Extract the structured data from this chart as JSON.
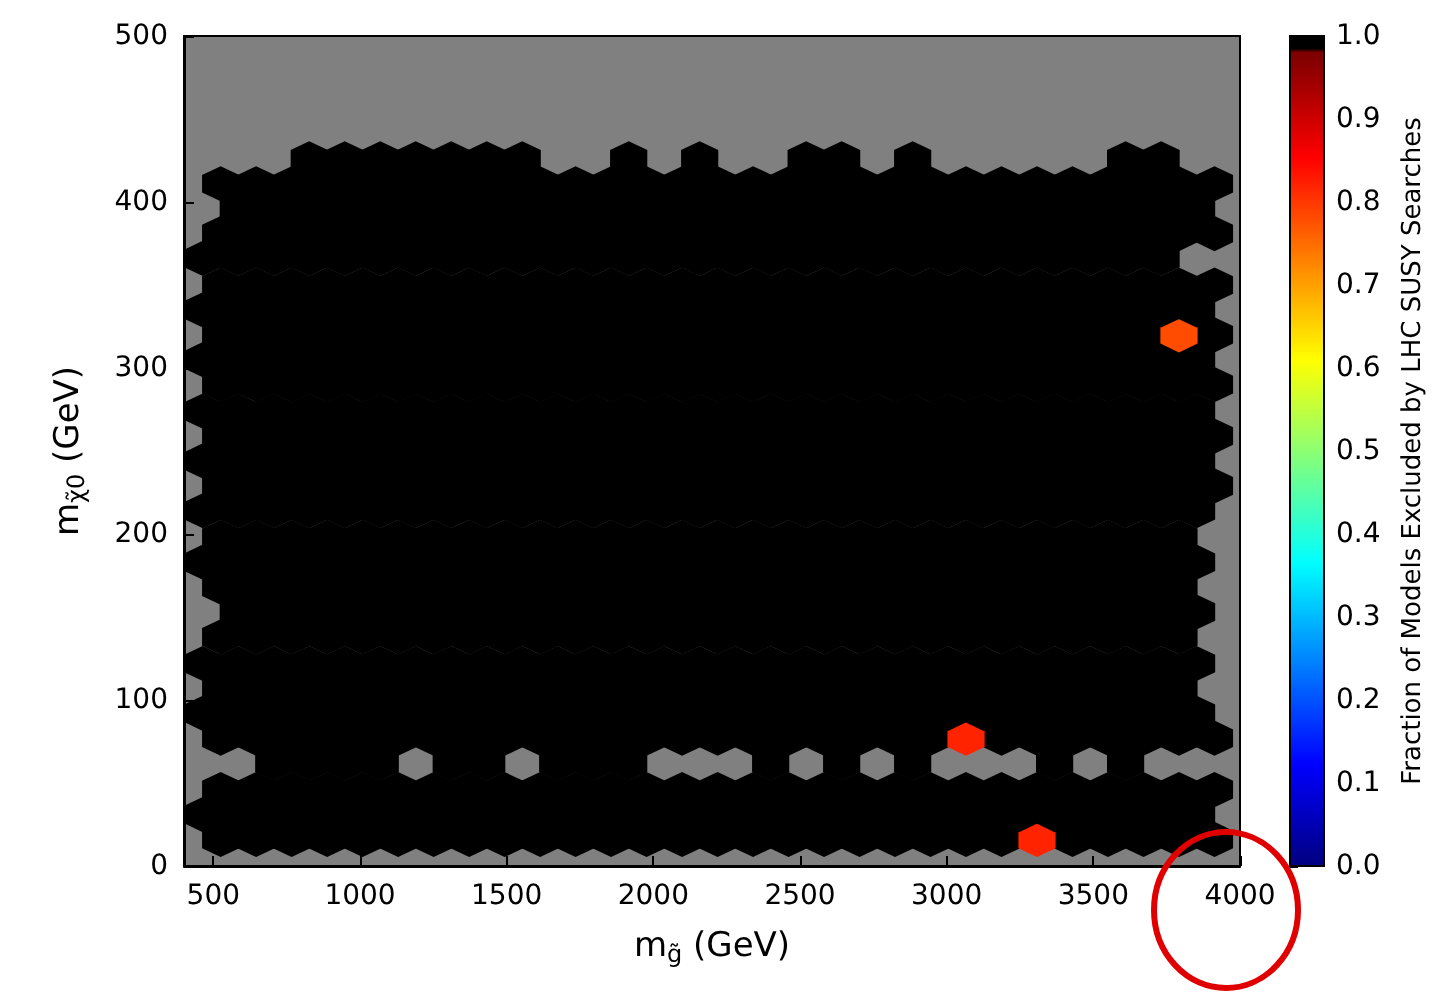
{
  "chart_data": {
    "type": "scatter",
    "xlabel": "m$_{g̃}$ (GeV)",
    "ylabel": "m$_{χ̃0}$ (GeV)",
    "clabel": "Fraction of Models Excluded by LHC SUSY Searches",
    "xlim": [
      400,
      4000
    ],
    "xticks": [
      500,
      1000,
      1500,
      2000,
      2500,
      3000,
      3500,
      4000
    ],
    "ylim": [
      0,
      500
    ],
    "yticks": [
      0,
      100,
      200,
      300,
      400,
      500
    ],
    "clim": [
      0,
      1
    ],
    "cticks": [
      {
        "value": 0,
        "label": "0.0"
      },
      0.1,
      0.2,
      0.3,
      0.4,
      0.5,
      0.6,
      0.7,
      0.8,
      0.9,
      {
        "value": 1,
        "label": "1.0"
      }
    ],
    "grid": false,
    "series": [
      {
        "x": [
          525,
          646,
          767,
          888,
          1009,
          1130,
          1251,
          1372,
          1493,
          1614,
          1735,
          1856,
          1977,
          2098,
          2219,
          2340,
          2461,
          2582,
          2703,
          2824,
          2945,
          3066,
          3187,
          3429,
          3550,
          3671,
          3792,
          3913
        ],
        "values": [
          16,
          16,
          16,
          16,
          16,
          16,
          16,
          16,
          16,
          16,
          16,
          16,
          16,
          16,
          16,
          16,
          16,
          16,
          16,
          16,
          16,
          16,
          16,
          16,
          16,
          16,
          16,
          16
        ],
        "cvalues": [
          1,
          1,
          1,
          1,
          1,
          1,
          1,
          1,
          1,
          1,
          1,
          1,
          1,
          1,
          1,
          1,
          1,
          1,
          1,
          1,
          1,
          1,
          1,
          1,
          1,
          1,
          1,
          1
        ]
      },
      {
        "x": [
          3308
        ],
        "values": [
          16
        ],
        "cvalues": [
          0.82
        ]
      },
      {
        "x": [
          464,
          585,
          706,
          827,
          948,
          1069,
          1190,
          1311,
          1432,
          1553,
          1674,
          1795,
          1916,
          2037,
          2158,
          2279,
          2400,
          2521,
          2642,
          2763,
          2884,
          3005,
          3126,
          3247,
          3368,
          3489,
          3610,
          3731,
          3852
        ],
        "values": [
          31,
          31,
          31,
          31,
          31,
          31,
          31,
          31,
          31,
          31,
          31,
          31,
          31,
          31,
          31,
          31,
          31,
          31,
          31,
          31,
          31,
          31,
          31,
          31,
          31,
          31,
          31,
          31,
          31
        ],
        "cvalues": [
          1,
          1,
          1,
          1,
          1,
          1,
          1,
          1,
          1,
          1,
          1,
          1,
          1,
          1,
          1,
          1,
          1,
          1,
          1,
          1,
          1,
          1,
          1,
          1,
          1,
          1,
          1,
          1,
          1
        ]
      },
      {
        "x": [
          525,
          646,
          767,
          888,
          1009,
          1130,
          1251,
          1372,
          1493,
          1614,
          1735,
          1856,
          1977,
          2098,
          2219,
          2340,
          2461,
          2582,
          2703,
          2824,
          2945,
          3066,
          3187,
          3308,
          3429,
          3550,
          3671,
          3792,
          3913
        ],
        "values": [
          46,
          46,
          46,
          46,
          46,
          46,
          46,
          46,
          46,
          46,
          46,
          46,
          46,
          46,
          46,
          46,
          46,
          46,
          46,
          46,
          46,
          46,
          46,
          46,
          46,
          46,
          46,
          46,
          46
        ],
        "cvalues": [
          1,
          1,
          1,
          1,
          1,
          1,
          1,
          1,
          1,
          1,
          1,
          1,
          1,
          1,
          1,
          1,
          1,
          1,
          1,
          1,
          1,
          1,
          1,
          1,
          1,
          1,
          1,
          1,
          1
        ]
      },
      {
        "x": [
          706,
          827,
          948,
          1069,
          1311,
          1432,
          1674,
          1795,
          1916,
          2400,
          2642,
          2884,
          3368,
          3610
        ],
        "values": [
          62,
          62,
          62,
          62,
          62,
          62,
          62,
          62,
          62,
          62,
          62,
          62,
          62,
          62
        ],
        "cvalues": [
          1,
          1,
          1,
          1,
          1,
          1,
          1,
          1,
          1,
          1,
          1,
          1,
          1,
          1
        ]
      },
      {
        "x": [
          525,
          646,
          767,
          888,
          1009,
          1130,
          1251,
          1372,
          1493,
          1614,
          1735,
          1856,
          1977,
          2098,
          2219,
          2340,
          2461,
          2582,
          2703,
          2824,
          2945,
          3187,
          3308,
          3429,
          3550,
          3671,
          3792,
          3913
        ],
        "values": [
          77,
          77,
          77,
          77,
          77,
          77,
          77,
          77,
          77,
          77,
          77,
          77,
          77,
          77,
          77,
          77,
          77,
          77,
          77,
          77,
          77,
          77,
          77,
          77,
          77,
          77,
          77,
          77
        ],
        "cvalues": [
          1,
          1,
          1,
          1,
          1,
          1,
          1,
          1,
          1,
          1,
          1,
          1,
          1,
          1,
          1,
          1,
          1,
          1,
          1,
          1,
          1,
          1,
          1,
          1,
          1,
          1,
          1,
          1
        ]
      },
      {
        "x": [
          3066
        ],
        "values": [
          77
        ],
        "cvalues": [
          0.82
        ]
      },
      {
        "x": [
          464,
          585,
          706,
          827,
          948,
          1069,
          1190,
          1311,
          1432,
          1553,
          1674,
          1795,
          1916,
          2037,
          2158,
          2279,
          2400,
          2521,
          2642,
          2763,
          2884,
          3005,
          3126,
          3247,
          3368,
          3489,
          3610,
          3731,
          3852
        ],
        "values": [
          92,
          92,
          92,
          92,
          92,
          92,
          92,
          92,
          92,
          92,
          92,
          92,
          92,
          92,
          92,
          92,
          92,
          92,
          92,
          92,
          92,
          92,
          92,
          92,
          92,
          92,
          92,
          92,
          92
        ],
        "cvalues": [
          1,
          1,
          1,
          1,
          1,
          1,
          1,
          1,
          1,
          1,
          1,
          1,
          1,
          1,
          1,
          1,
          1,
          1,
          1,
          1,
          1,
          1,
          1,
          1,
          1,
          1,
          1,
          1,
          1
        ]
      },
      {
        "x": [
          525,
          646,
          767,
          888,
          1009,
          1130,
          1251,
          1372,
          1493,
          1614,
          1735,
          1856,
          1977,
          2098,
          2219,
          2340,
          2461,
          2582,
          2703,
          2824,
          2945,
          3066,
          3187,
          3308,
          3429,
          3550,
          3671,
          3792
        ],
        "values": [
          107,
          107,
          107,
          107,
          107,
          107,
          107,
          107,
          107,
          107,
          107,
          107,
          107,
          107,
          107,
          107,
          107,
          107,
          107,
          107,
          107,
          107,
          107,
          107,
          107,
          107,
          107,
          107
        ],
        "cvalues": [
          1,
          1,
          1,
          1,
          1,
          1,
          1,
          1,
          1,
          1,
          1,
          1,
          1,
          1,
          1,
          1,
          1,
          1,
          1,
          1,
          1,
          1,
          1,
          1,
          1,
          1,
          1,
          1
        ]
      },
      {
        "x": [
          464,
          585,
          706,
          827,
          948,
          1069,
          1190,
          1311,
          1432,
          1553,
          1674,
          1795,
          1916,
          2037,
          2158,
          2279,
          2400,
          2521,
          2642,
          2763,
          2884,
          3005,
          3126,
          3247,
          3368,
          3489,
          3610,
          3731,
          3852
        ],
        "values": [
          122,
          122,
          122,
          122,
          122,
          122,
          122,
          122,
          122,
          122,
          122,
          122,
          122,
          122,
          122,
          122,
          122,
          122,
          122,
          122,
          122,
          122,
          122,
          122,
          122,
          122,
          122,
          122,
          122
        ],
        "cvalues": [
          1,
          1,
          1,
          1,
          1,
          1,
          1,
          1,
          1,
          1,
          1,
          1,
          1,
          1,
          1,
          1,
          1,
          1,
          1,
          1,
          1,
          1,
          1,
          1,
          1,
          1,
          1,
          1,
          1
        ]
      },
      {
        "x": [
          525,
          646,
          767,
          888,
          1009,
          1130,
          1251,
          1372,
          1493,
          1614,
          1735,
          1856,
          1977,
          2098,
          2219,
          2340,
          2461,
          2582,
          2703,
          2824,
          2945,
          3066,
          3187,
          3308,
          3429,
          3550,
          3671,
          3792
        ],
        "values": [
          138,
          138,
          138,
          138,
          138,
          138,
          138,
          138,
          138,
          138,
          138,
          138,
          138,
          138,
          138,
          138,
          138,
          138,
          138,
          138,
          138,
          138,
          138,
          138,
          138,
          138,
          138,
          138
        ],
        "cvalues": [
          1,
          1,
          1,
          1,
          1,
          1,
          1,
          1,
          1,
          1,
          1,
          1,
          1,
          1,
          1,
          1,
          1,
          1,
          1,
          1,
          1,
          1,
          1,
          1,
          1,
          1,
          1,
          1
        ]
      },
      {
        "x": [
          585,
          706,
          827,
          948,
          1069,
          1190,
          1311,
          1432,
          1553,
          1674,
          1795,
          1916,
          2037,
          2158,
          2279,
          2400,
          2521,
          2642,
          2763,
          2884,
          3005,
          3126,
          3247,
          3368,
          3489,
          3610,
          3731,
          3852
        ],
        "values": [
          153,
          153,
          153,
          153,
          153,
          153,
          153,
          153,
          153,
          153,
          153,
          153,
          153,
          153,
          153,
          153,
          153,
          153,
          153,
          153,
          153,
          153,
          153,
          153,
          153,
          153,
          153,
          153
        ],
        "cvalues": [
          1,
          1,
          1,
          1,
          1,
          1,
          1,
          1,
          1,
          1,
          1,
          1,
          1,
          1,
          1,
          1,
          1,
          1,
          1,
          1,
          1,
          1,
          1,
          1,
          1,
          1,
          1,
          1
        ]
      },
      {
        "x": [
          525,
          646,
          767,
          888,
          1009,
          1130,
          1251,
          1372,
          1493,
          1614,
          1735,
          1856,
          1977,
          2098,
          2219,
          2340,
          2461,
          2582,
          2703,
          2824,
          2945,
          3066,
          3187,
          3308,
          3429,
          3550,
          3671,
          3792
        ],
        "values": [
          168,
          168,
          168,
          168,
          168,
          168,
          168,
          168,
          168,
          168,
          168,
          168,
          168,
          168,
          168,
          168,
          168,
          168,
          168,
          168,
          168,
          168,
          168,
          168,
          168,
          168,
          168,
          168
        ],
        "cvalues": [
          1,
          1,
          1,
          1,
          1,
          1,
          1,
          1,
          1,
          1,
          1,
          1,
          1,
          1,
          1,
          1,
          1,
          1,
          1,
          1,
          1,
          1,
          1,
          1,
          1,
          1,
          1,
          1
        ]
      },
      {
        "x": [
          464,
          585,
          706,
          827,
          948,
          1069,
          1190,
          1311,
          1432,
          1553,
          1674,
          1795,
          1916,
          2037,
          2158,
          2279,
          2400,
          2521,
          2642,
          2763,
          2884,
          3005,
          3126,
          3247,
          3368,
          3489,
          3610,
          3731,
          3852
        ],
        "values": [
          183,
          183,
          183,
          183,
          183,
          183,
          183,
          183,
          183,
          183,
          183,
          183,
          183,
          183,
          183,
          183,
          183,
          183,
          183,
          183,
          183,
          183,
          183,
          183,
          183,
          183,
          183,
          183,
          183
        ],
        "cvalues": [
          1,
          1,
          1,
          1,
          1,
          1,
          1,
          1,
          1,
          1,
          1,
          1,
          1,
          1,
          1,
          1,
          1,
          1,
          1,
          1,
          1,
          1,
          1,
          1,
          1,
          1,
          1,
          1,
          1
        ]
      },
      {
        "x": [
          525,
          646,
          767,
          888,
          1009,
          1130,
          1251,
          1372,
          1493,
          1614,
          1735,
          1856,
          1977,
          2098,
          2219,
          2340,
          2461,
          2582,
          2703,
          2824,
          2945,
          3066,
          3187,
          3308,
          3429,
          3550,
          3671,
          3792
        ],
        "values": [
          198,
          198,
          198,
          198,
          198,
          198,
          198,
          198,
          198,
          198,
          198,
          198,
          198,
          198,
          198,
          198,
          198,
          198,
          198,
          198,
          198,
          198,
          198,
          198,
          198,
          198,
          198,
          198
        ],
        "cvalues": [
          1,
          1,
          1,
          1,
          1,
          1,
          1,
          1,
          1,
          1,
          1,
          1,
          1,
          1,
          1,
          1,
          1,
          1,
          1,
          1,
          1,
          1,
          1,
          1,
          1,
          1,
          1,
          1
        ]
      },
      {
        "x": [
          464,
          585,
          706,
          827,
          948,
          1069,
          1190,
          1311,
          1432,
          1553,
          1674,
          1795,
          1916,
          2037,
          2158,
          2279,
          2400,
          2521,
          2642,
          2763,
          2884,
          3005,
          3126,
          3247,
          3368,
          3489,
          3610,
          3731,
          3852
        ],
        "values": [
          214,
          214,
          214,
          214,
          214,
          214,
          214,
          214,
          214,
          214,
          214,
          214,
          214,
          214,
          214,
          214,
          214,
          214,
          214,
          214,
          214,
          214,
          214,
          214,
          214,
          214,
          214,
          214,
          214
        ],
        "cvalues": [
          1,
          1,
          1,
          1,
          1,
          1,
          1,
          1,
          1,
          1,
          1,
          1,
          1,
          1,
          1,
          1,
          1,
          1,
          1,
          1,
          1,
          1,
          1,
          1,
          1,
          1,
          1,
          1,
          1
        ]
      },
      {
        "x": [
          525,
          646,
          767,
          888,
          1009,
          1130,
          1251,
          1372,
          1493,
          1614,
          1735,
          1856,
          1977,
          2098,
          2219,
          2340,
          2461,
          2582,
          2703,
          2824,
          2945,
          3066,
          3187,
          3308,
          3429,
          3550,
          3671,
          3792,
          3913
        ],
        "values": [
          229,
          229,
          229,
          229,
          229,
          229,
          229,
          229,
          229,
          229,
          229,
          229,
          229,
          229,
          229,
          229,
          229,
          229,
          229,
          229,
          229,
          229,
          229,
          229,
          229,
          229,
          229,
          229,
          229
        ],
        "cvalues": [
          1,
          1,
          1,
          1,
          1,
          1,
          1,
          1,
          1,
          1,
          1,
          1,
          1,
          1,
          1,
          1,
          1,
          1,
          1,
          1,
          1,
          1,
          1,
          1,
          1,
          1,
          1,
          1,
          1
        ]
      },
      {
        "x": [
          464,
          585,
          706,
          827,
          948,
          1069,
          1190,
          1311,
          1432,
          1553,
          1674,
          1795,
          1916,
          2037,
          2158,
          2279,
          2400,
          2521,
          2642,
          2763,
          2884,
          3005,
          3126,
          3247,
          3368,
          3489,
          3610,
          3731,
          3852
        ],
        "values": [
          244,
          244,
          244,
          244,
          244,
          244,
          244,
          244,
          244,
          244,
          244,
          244,
          244,
          244,
          244,
          244,
          244,
          244,
          244,
          244,
          244,
          244,
          244,
          244,
          244,
          244,
          244,
          244,
          244
        ],
        "cvalues": [
          1,
          1,
          1,
          1,
          1,
          1,
          1,
          1,
          1,
          1,
          1,
          1,
          1,
          1,
          1,
          1,
          1,
          1,
          1,
          1,
          1,
          1,
          1,
          1,
          1,
          1,
          1,
          1,
          1
        ]
      },
      {
        "x": [
          525,
          646,
          767,
          888,
          1009,
          1130,
          1251,
          1372,
          1493,
          1614,
          1735,
          1856,
          1977,
          2098,
          2219,
          2340,
          2461,
          2582,
          2703,
          2824,
          2945,
          3066,
          3187,
          3308,
          3429,
          3550,
          3671,
          3792,
          3913
        ],
        "values": [
          259,
          259,
          259,
          259,
          259,
          259,
          259,
          259,
          259,
          259,
          259,
          259,
          259,
          259,
          259,
          259,
          259,
          259,
          259,
          259,
          259,
          259,
          259,
          259,
          259,
          259,
          259,
          259,
          259
        ],
        "cvalues": [
          1,
          1,
          1,
          1,
          1,
          1,
          1,
          1,
          1,
          1,
          1,
          1,
          1,
          1,
          1,
          1,
          1,
          1,
          1,
          1,
          1,
          1,
          1,
          1,
          1,
          1,
          1,
          1,
          1
        ]
      },
      {
        "x": [
          464,
          585,
          706,
          827,
          948,
          1069,
          1190,
          1311,
          1432,
          1553,
          1674,
          1795,
          1916,
          2037,
          2158,
          2279,
          2400,
          2521,
          2642,
          2763,
          2884,
          3005,
          3126,
          3247,
          3368,
          3489,
          3610,
          3731,
          3852
        ],
        "values": [
          274,
          274,
          274,
          274,
          274,
          274,
          274,
          274,
          274,
          274,
          274,
          274,
          274,
          274,
          274,
          274,
          274,
          274,
          274,
          274,
          274,
          274,
          274,
          274,
          274,
          274,
          274,
          274,
          274
        ],
        "cvalues": [
          1,
          1,
          1,
          1,
          1,
          1,
          1,
          1,
          1,
          1,
          1,
          1,
          1,
          1,
          1,
          1,
          1,
          1,
          1,
          1,
          1,
          1,
          1,
          1,
          1,
          1,
          1,
          1,
          1
        ]
      },
      {
        "x": [
          525,
          646,
          767,
          888,
          1009,
          1130,
          1251,
          1372,
          1493,
          1614,
          1735,
          1856,
          1977,
          2098,
          2219,
          2340,
          2461,
          2582,
          2703,
          2824,
          2945,
          3066,
          3187,
          3308,
          3429,
          3550,
          3671,
          3792,
          3913
        ],
        "values": [
          290,
          290,
          290,
          290,
          290,
          290,
          290,
          290,
          290,
          290,
          290,
          290,
          290,
          290,
          290,
          290,
          290,
          290,
          290,
          290,
          290,
          290,
          290,
          290,
          290,
          290,
          290,
          290,
          290
        ],
        "cvalues": [
          1,
          1,
          1,
          1,
          1,
          1,
          1,
          1,
          1,
          1,
          1,
          1,
          1,
          1,
          1,
          1,
          1,
          1,
          1,
          1,
          1,
          1,
          1,
          1,
          1,
          1,
          1,
          1,
          1
        ]
      },
      {
        "x": [
          464,
          585,
          706,
          827,
          948,
          1069,
          1190,
          1311,
          1432,
          1553,
          1674,
          1795,
          1916,
          2037,
          2158,
          2279,
          2400,
          2521,
          2642,
          2763,
          2884,
          3005,
          3126,
          3247,
          3368,
          3489,
          3610,
          3731,
          3852
        ],
        "values": [
          305,
          305,
          305,
          305,
          305,
          305,
          305,
          305,
          305,
          305,
          305,
          305,
          305,
          305,
          305,
          305,
          305,
          305,
          305,
          305,
          305,
          305,
          305,
          305,
          305,
          305,
          305,
          305,
          305
        ],
        "cvalues": [
          1,
          1,
          1,
          1,
          1,
          1,
          1,
          1,
          1,
          1,
          1,
          1,
          1,
          1,
          1,
          1,
          1,
          1,
          1,
          1,
          1,
          1,
          1,
          1,
          1,
          1,
          1,
          1,
          1
        ]
      },
      {
        "x": [
          525,
          646,
          767,
          888,
          1009,
          1130,
          1251,
          1372,
          1493,
          1614,
          1735,
          1856,
          1977,
          2098,
          2219,
          2340,
          2461,
          2582,
          2703,
          2824,
          2945,
          3066,
          3187,
          3308,
          3429,
          3550,
          3671,
          3913
        ],
        "values": [
          320,
          320,
          320,
          320,
          320,
          320,
          320,
          320,
          320,
          320,
          320,
          320,
          320,
          320,
          320,
          320,
          320,
          320,
          320,
          320,
          320,
          320,
          320,
          320,
          320,
          320,
          320,
          320
        ],
        "cvalues": [
          1,
          1,
          1,
          1,
          1,
          1,
          1,
          1,
          1,
          1,
          1,
          1,
          1,
          1,
          1,
          1,
          1,
          1,
          1,
          1,
          1,
          1,
          1,
          1,
          1,
          1,
          1,
          1
        ]
      },
      {
        "x": [
          3792
        ],
        "values": [
          320
        ],
        "cvalues": [
          0.78
        ]
      },
      {
        "x": [
          464,
          585,
          706,
          827,
          948,
          1069,
          1190,
          1311,
          1432,
          1553,
          1674,
          1795,
          1916,
          2037,
          2158,
          2279,
          2400,
          2521,
          2642,
          2763,
          2884,
          3005,
          3126,
          3247,
          3368,
          3489,
          3610,
          3731,
          3852
        ],
        "values": [
          335,
          335,
          335,
          335,
          335,
          335,
          335,
          335,
          335,
          335,
          335,
          335,
          335,
          335,
          335,
          335,
          335,
          335,
          335,
          335,
          335,
          335,
          335,
          335,
          335,
          335,
          335,
          335,
          335
        ],
        "cvalues": [
          1,
          1,
          1,
          1,
          1,
          1,
          1,
          1,
          1,
          1,
          1,
          1,
          1,
          1,
          1,
          1,
          1,
          1,
          1,
          1,
          1,
          1,
          1,
          1,
          1,
          1,
          1,
          1,
          1
        ]
      },
      {
        "x": [
          525,
          646,
          767,
          888,
          1009,
          1130,
          1251,
          1372,
          1493,
          1614,
          1735,
          1856,
          1977,
          2098,
          2219,
          2340,
          2461,
          2582,
          2703,
          2824,
          2945,
          3066,
          3187,
          3308,
          3429,
          3550,
          3671,
          3792,
          3913
        ],
        "values": [
          350,
          350,
          350,
          350,
          350,
          350,
          350,
          350,
          350,
          350,
          350,
          350,
          350,
          350,
          350,
          350,
          350,
          350,
          350,
          350,
          350,
          350,
          350,
          350,
          350,
          350,
          350,
          350,
          350
        ],
        "cvalues": [
          1,
          1,
          1,
          1,
          1,
          1,
          1,
          1,
          1,
          1,
          1,
          1,
          1,
          1,
          1,
          1,
          1,
          1,
          1,
          1,
          1,
          1,
          1,
          1,
          1,
          1,
          1,
          1,
          1
        ]
      },
      {
        "x": [
          464,
          585,
          706,
          827,
          948,
          1069,
          1190,
          1311,
          1432,
          1553,
          1674,
          1795,
          1916,
          2037,
          2158,
          2279,
          2400,
          2521,
          2642,
          2763,
          2884,
          3005,
          3126,
          3247,
          3368,
          3489,
          3610,
          3731
        ],
        "values": [
          366,
          366,
          366,
          366,
          366,
          366,
          366,
          366,
          366,
          366,
          366,
          366,
          366,
          366,
          366,
          366,
          366,
          366,
          366,
          366,
          366,
          366,
          366,
          366,
          366,
          366,
          366,
          366
        ],
        "cvalues": [
          1,
          1,
          1,
          1,
          1,
          1,
          1,
          1,
          1,
          1,
          1,
          1,
          1,
          1,
          1,
          1,
          1,
          1,
          1,
          1,
          1,
          1,
          1,
          1,
          1,
          1,
          1,
          1
        ]
      },
      {
        "x": [
          525,
          646,
          767,
          888,
          1009,
          1130,
          1251,
          1372,
          1493,
          1614,
          1735,
          1856,
          1977,
          2098,
          2219,
          2340,
          2461,
          2582,
          2703,
          2824,
          2945,
          3066,
          3187,
          3308,
          3429,
          3550,
          3671,
          3792,
          3913
        ],
        "values": [
          381,
          381,
          381,
          381,
          381,
          381,
          381,
          381,
          381,
          381,
          381,
          381,
          381,
          381,
          381,
          381,
          381,
          381,
          381,
          381,
          381,
          381,
          381,
          381,
          381,
          381,
          381,
          381,
          381
        ],
        "cvalues": [
          1,
          1,
          1,
          1,
          1,
          1,
          1,
          1,
          1,
          1,
          1,
          1,
          1,
          1,
          1,
          1,
          1,
          1,
          1,
          1,
          1,
          1,
          1,
          1,
          1,
          1,
          1,
          1,
          1
        ]
      },
      {
        "x": [
          585,
          706,
          827,
          948,
          1069,
          1190,
          1311,
          1432,
          1553,
          1674,
          1795,
          1916,
          2037,
          2158,
          2279,
          2400,
          2521,
          2642,
          2763,
          2884,
          3005,
          3126,
          3247,
          3368,
          3489,
          3610,
          3731,
          3852
        ],
        "values": [
          396,
          396,
          396,
          396,
          396,
          396,
          396,
          396,
          396,
          396,
          396,
          396,
          396,
          396,
          396,
          396,
          396,
          396,
          396,
          396,
          396,
          396,
          396,
          396,
          396,
          396,
          396,
          396
        ],
        "cvalues": [
          1,
          1,
          1,
          1,
          1,
          1,
          1,
          1,
          1,
          1,
          1,
          1,
          1,
          1,
          1,
          1,
          1,
          1,
          1,
          1,
          1,
          1,
          1,
          1,
          1,
          1,
          1,
          1
        ]
      },
      {
        "x": [
          525,
          646,
          767,
          888,
          1009,
          1130,
          1251,
          1372,
          1493,
          1614,
          1735,
          1856,
          1977,
          2098,
          2219,
          2340,
          2461,
          2582,
          2703,
          2824,
          2945,
          3066,
          3187,
          3308,
          3429,
          3550,
          3671,
          3792,
          3913
        ],
        "values": [
          411,
          411,
          411,
          411,
          411,
          411,
          411,
          411,
          411,
          411,
          411,
          411,
          411,
          411,
          411,
          411,
          411,
          411,
          411,
          411,
          411,
          411,
          411,
          411,
          411,
          411,
          411,
          411,
          411
        ],
        "cvalues": [
          1,
          1,
          1,
          1,
          1,
          1,
          1,
          1,
          1,
          1,
          1,
          1,
          1,
          1,
          1,
          1,
          1,
          1,
          1,
          1,
          1,
          1,
          1,
          1,
          1,
          1,
          1,
          1,
          1
        ]
      },
      {
        "x": [
          827,
          948,
          1069,
          1190,
          1311,
          1432,
          1553,
          1916,
          2158,
          2521,
          2642,
          2884,
          3610,
          3731
        ],
        "values": [
          426,
          426,
          426,
          426,
          426,
          426,
          426,
          426,
          426,
          426,
          426,
          426,
          426,
          426
        ],
        "cvalues": [
          1,
          1,
          1,
          1,
          1,
          1,
          1,
          1,
          1,
          1,
          1,
          1,
          1,
          1
        ]
      }
    ]
  }
}
